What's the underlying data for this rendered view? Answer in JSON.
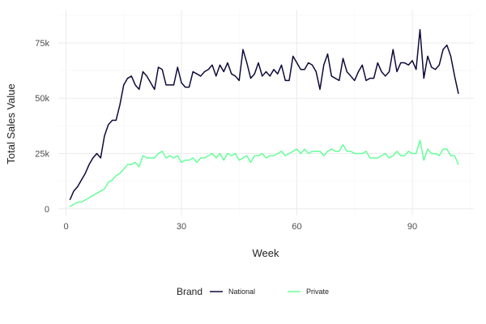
{
  "chart_data": {
    "type": "line",
    "xlabel": "Week",
    "ylabel": "Total Sales Value",
    "xlim": [
      -2,
      106
    ],
    "ylim": [
      -3000,
      90000
    ],
    "x_ticks": [
      0,
      30,
      60,
      90
    ],
    "x_tick_labels": [
      "0",
      "30",
      "60",
      "90"
    ],
    "y_ticks": [
      0,
      25000,
      50000,
      75000
    ],
    "y_tick_labels": [
      "0",
      "25k",
      "50k",
      "75k"
    ],
    "grid": true,
    "legend": {
      "title": "Brand",
      "position": "bottom"
    },
    "x": [
      1,
      2,
      3,
      4,
      5,
      6,
      7,
      8,
      9,
      10,
      11,
      12,
      13,
      14,
      15,
      16,
      17,
      18,
      19,
      20,
      21,
      22,
      23,
      24,
      25,
      26,
      27,
      28,
      29,
      30,
      31,
      32,
      33,
      34,
      35,
      36,
      37,
      38,
      39,
      40,
      41,
      42,
      43,
      44,
      45,
      46,
      47,
      48,
      49,
      50,
      51,
      52,
      53,
      54,
      55,
      56,
      57,
      58,
      59,
      60,
      61,
      62,
      63,
      64,
      65,
      66,
      67,
      68,
      69,
      70,
      71,
      72,
      73,
      74,
      75,
      76,
      77,
      78,
      79,
      80,
      81,
      82,
      83,
      84,
      85,
      86,
      87,
      88,
      89,
      90,
      91,
      92,
      93,
      94,
      95,
      96,
      97,
      98,
      99,
      100,
      101,
      102
    ],
    "series": [
      {
        "name": "National",
        "color": "#0d0a3a",
        "values": [
          4000,
          8000,
          10000,
          13000,
          16000,
          20000,
          23000,
          25000,
          23000,
          33000,
          38000,
          40000,
          40000,
          47000,
          56000,
          59000,
          60000,
          56000,
          54000,
          62000,
          60000,
          57000,
          54000,
          64000,
          63000,
          56000,
          56000,
          56000,
          64000,
          57000,
          55000,
          55000,
          62000,
          61000,
          60000,
          62000,
          63000,
          65000,
          60000,
          65000,
          62000,
          66000,
          61000,
          60000,
          58000,
          72000,
          66000,
          59000,
          61000,
          66000,
          60000,
          62000,
          60000,
          63000,
          61000,
          65000,
          58000,
          58000,
          69000,
          66000,
          63000,
          63000,
          66000,
          65000,
          62000,
          54000,
          65000,
          70000,
          60000,
          59000,
          58000,
          68000,
          62000,
          60000,
          58000,
          62000,
          65000,
          58000,
          59000,
          59000,
          66000,
          62000,
          60000,
          62000,
          72000,
          62000,
          66000,
          66000,
          65000,
          67000,
          63000,
          81000,
          59000,
          69000,
          64000,
          63000,
          65000,
          72000,
          74000,
          69000,
          60000,
          52000
        ]
      },
      {
        "name": "Private",
        "color": "#66ff99",
        "values": [
          1000,
          2000,
          3000,
          3000,
          4000,
          5000,
          6000,
          7000,
          8000,
          9000,
          12000,
          13000,
          15000,
          16000,
          18000,
          20000,
          20000,
          21000,
          19000,
          24000,
          23000,
          23000,
          23000,
          25000,
          26000,
          23000,
          24000,
          23000,
          24000,
          21000,
          22000,
          22000,
          23000,
          21000,
          23000,
          23000,
          24000,
          25000,
          23000,
          25000,
          22000,
          25000,
          24000,
          25000,
          22000,
          23000,
          24000,
          21000,
          24000,
          24000,
          25000,
          23000,
          24000,
          24000,
          25000,
          26000,
          24000,
          25000,
          26000,
          27000,
          25000,
          27000,
          25000,
          26000,
          26000,
          26000,
          24000,
          26000,
          27000,
          26000,
          26000,
          29000,
          26000,
          26000,
          25000,
          25000,
          25000,
          26000,
          23000,
          23000,
          23000,
          24000,
          25000,
          23000,
          24000,
          26000,
          24000,
          24000,
          26000,
          25000,
          25000,
          31000,
          22000,
          27000,
          25000,
          25000,
          24000,
          27000,
          27000,
          24000,
          24000,
          20000
        ]
      }
    ]
  }
}
